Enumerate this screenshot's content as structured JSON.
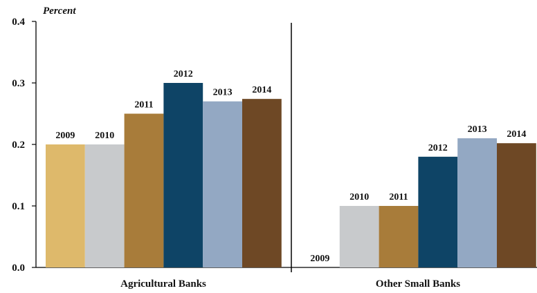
{
  "chart_data": {
    "type": "bar",
    "ylabel": "Percent",
    "ylim": [
      0,
      0.4
    ],
    "yticks": [
      "0.0",
      "0.1",
      "0.2",
      "0.3",
      "0.4"
    ],
    "grid": false,
    "categories": [
      "Agricultural Banks",
      "Other Small Banks"
    ],
    "series": [
      {
        "name": "2009",
        "values": [
          0.2,
          0.0
        ],
        "color": "#DEB96B"
      },
      {
        "name": "2010",
        "values": [
          0.2,
          0.1
        ],
        "color": "#C8CACC"
      },
      {
        "name": "2011",
        "values": [
          0.25,
          0.1
        ],
        "color": "#A87C3A"
      },
      {
        "name": "2012",
        "values": [
          0.3,
          0.18
        ],
        "color": "#0E4466"
      },
      {
        "name": "2013",
        "values": [
          0.27,
          0.21
        ],
        "color": "#93A8C3"
      },
      {
        "name": "2014",
        "values": [
          0.274,
          0.202
        ],
        "color": "#6E4825"
      }
    ]
  }
}
